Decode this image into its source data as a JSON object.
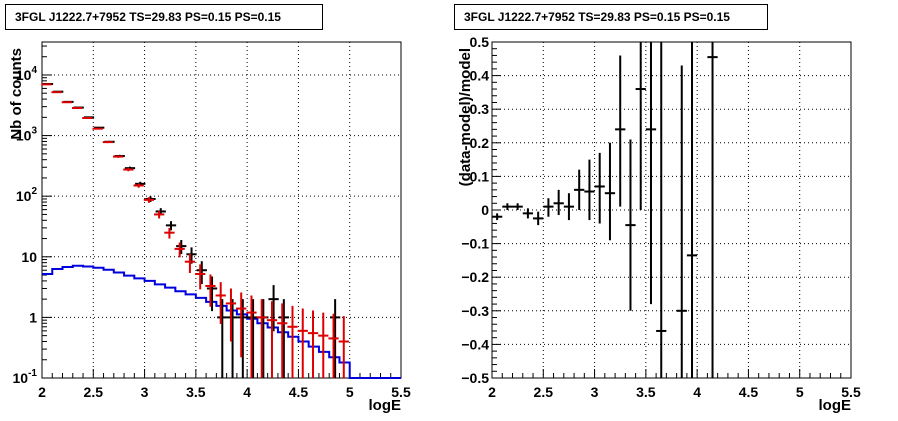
{
  "chart_data": [
    {
      "type": "histogram",
      "title": "3FGL J1222.7+7952 TS=29.83 PS=0.15 PS=0.15",
      "xlabel": "logE",
      "ylabel": "Nb of counts",
      "xlim": [
        2,
        5.5
      ],
      "ylim": [
        0.1,
        35000
      ],
      "yscale": "log",
      "grid": true,
      "x_ticks": [
        "2",
        "2.5",
        "3",
        "3.5",
        "4",
        "4.5",
        "5",
        "5.5"
      ],
      "y_ticks": [
        {
          "value": 0.1,
          "label": "10",
          "exp": "-1"
        },
        {
          "value": 1,
          "label": "1",
          "exp": ""
        },
        {
          "value": 10,
          "label": "10",
          "exp": ""
        },
        {
          "value": 100,
          "label": "10",
          "exp": "2"
        },
        {
          "value": 1000,
          "label": "10",
          "exp": "3"
        },
        {
          "value": 10000,
          "label": "10",
          "exp": "4"
        }
      ],
      "bin_width": 0.1,
      "series": [
        {
          "role": "data",
          "color": "#000000",
          "points": [
            {
              "x": 2.05,
              "y": 7100,
              "lo": 7016,
              "hi": 7184
            },
            {
              "x": 2.15,
              "y": 5300,
              "lo": 5227,
              "hi": 5373
            },
            {
              "x": 2.25,
              "y": 3600,
              "lo": 3540,
              "hi": 3660
            },
            {
              "x": 2.35,
              "y": 2900,
              "lo": 2846,
              "hi": 2954
            },
            {
              "x": 2.45,
              "y": 2000,
              "lo": 1955,
              "hi": 2045
            },
            {
              "x": 2.55,
              "y": 1350,
              "lo": 1313,
              "hi": 1387
            },
            {
              "x": 2.65,
              "y": 790,
              "lo": 762,
              "hi": 818
            },
            {
              "x": 2.75,
              "y": 460,
              "lo": 439,
              "hi": 481
            },
            {
              "x": 2.85,
              "y": 290,
              "lo": 273,
              "hi": 307
            },
            {
              "x": 2.95,
              "y": 160,
              "lo": 147,
              "hi": 173
            },
            {
              "x": 3.05,
              "y": 90,
              "lo": 80.5,
              "hi": 99.5
            },
            {
              "x": 3.15,
              "y": 56,
              "lo": 48.5,
              "hi": 63.5
            },
            {
              "x": 3.25,
              "y": 33,
              "lo": 27.3,
              "hi": 38.7
            },
            {
              "x": 3.35,
              "y": 15,
              "lo": 11.1,
              "hi": 18.9
            },
            {
              "x": 3.45,
              "y": 11,
              "lo": 7.7,
              "hi": 14.3
            },
            {
              "x": 3.55,
              "y": 6,
              "lo": 3.55,
              "hi": 8.45
            },
            {
              "x": 3.65,
              "y": 3,
              "lo": 1.27,
              "hi": 4.73
            },
            {
              "x": 3.75,
              "y": 1,
              "lo": 0.1,
              "hi": 2.0
            },
            {
              "x": 3.85,
              "y": 1,
              "lo": 0.1,
              "hi": 2.0
            },
            {
              "x": 3.95,
              "y": 1,
              "lo": 0.1,
              "hi": 2.0
            },
            {
              "x": 4.05,
              "y": 1,
              "lo": 0.1,
              "hi": 2.0
            },
            {
              "x": 4.15,
              "y": 1,
              "lo": 0.1,
              "hi": 2.0
            },
            {
              "x": 4.25,
              "y": 2,
              "lo": 0.59,
              "hi": 3.41
            },
            {
              "x": 4.35,
              "y": 1,
              "lo": 0.1,
              "hi": 2.0
            },
            {
              "x": 4.85,
              "y": 1,
              "lo": 0.1,
              "hi": 2.0
            }
          ]
        },
        {
          "role": "model",
          "color": "#dd0000",
          "points": [
            {
              "x": 2.05,
              "y": 7000,
              "lo": 6916,
              "hi": 7084
            },
            {
              "x": 2.15,
              "y": 5200,
              "lo": 5128,
              "hi": 5272
            },
            {
              "x": 2.25,
              "y": 3550,
              "lo": 3490,
              "hi": 3610
            },
            {
              "x": 2.35,
              "y": 2850,
              "lo": 2797,
              "hi": 2903
            },
            {
              "x": 2.45,
              "y": 1950,
              "lo": 1906,
              "hi": 1994
            },
            {
              "x": 2.55,
              "y": 1300,
              "lo": 1264,
              "hi": 1336
            },
            {
              "x": 2.65,
              "y": 780,
              "lo": 752,
              "hi": 808
            },
            {
              "x": 2.75,
              "y": 450,
              "lo": 429,
              "hi": 471
            },
            {
              "x": 2.85,
              "y": 275,
              "lo": 258,
              "hi": 292
            },
            {
              "x": 2.95,
              "y": 150,
              "lo": 138,
              "hi": 162
            },
            {
              "x": 3.05,
              "y": 87,
              "lo": 77.7,
              "hi": 96.3
            },
            {
              "x": 3.15,
              "y": 50,
              "lo": 42.9,
              "hi": 57.1
            },
            {
              "x": 3.25,
              "y": 25,
              "lo": 20,
              "hi": 30
            },
            {
              "x": 3.35,
              "y": 13.5,
              "lo": 9.8,
              "hi": 17.2
            },
            {
              "x": 3.45,
              "y": 8.3,
              "lo": 5.4,
              "hi": 11.2
            },
            {
              "x": 3.55,
              "y": 5.2,
              "lo": 2.9,
              "hi": 7.5
            },
            {
              "x": 3.65,
              "y": 3.3,
              "lo": 1.5,
              "hi": 5.1
            },
            {
              "x": 3.75,
              "y": 2.3,
              "lo": 0.78,
              "hi": 3.82
            },
            {
              "x": 3.85,
              "y": 1.7,
              "lo": 0.4,
              "hi": 3.0
            },
            {
              "x": 3.95,
              "y": 1.4,
              "lo": 0.22,
              "hi": 2.58
            },
            {
              "x": 4.05,
              "y": 1.2,
              "lo": 0.1,
              "hi": 2.3
            },
            {
              "x": 4.15,
              "y": 1.0,
              "lo": 0.1,
              "hi": 2.0
            },
            {
              "x": 4.25,
              "y": 0.9,
              "lo": 0.1,
              "hi": 1.85
            },
            {
              "x": 4.35,
              "y": 0.8,
              "lo": 0.1,
              "hi": 1.7
            },
            {
              "x": 4.45,
              "y": 0.7,
              "lo": 0.1,
              "hi": 1.55
            },
            {
              "x": 4.55,
              "y": 0.6,
              "lo": 0.1,
              "hi": 1.4
            },
            {
              "x": 4.65,
              "y": 0.55,
              "lo": 0.1,
              "hi": 1.3
            },
            {
              "x": 4.75,
              "y": 0.5,
              "lo": 0.1,
              "hi": 1.2
            },
            {
              "x": 4.85,
              "y": 0.45,
              "lo": 0.1,
              "hi": 1.15
            },
            {
              "x": 4.95,
              "y": 0.4,
              "lo": 0.1,
              "hi": 1.05
            }
          ]
        },
        {
          "role": "component",
          "color": "#0000dd",
          "style": "step",
          "edges": [
            2.0,
            2.1,
            2.2,
            2.3,
            2.4,
            2.5,
            2.6,
            2.7,
            2.8,
            2.9,
            3.0,
            3.1,
            3.2,
            3.3,
            3.4,
            3.5,
            3.6,
            3.7,
            3.8,
            3.9,
            4.0,
            4.1,
            4.2,
            4.3,
            4.4,
            4.5,
            4.6,
            4.7,
            4.8,
            4.9,
            5.0,
            5.1,
            5.2,
            5.3,
            5.4,
            5.5
          ],
          "values": [
            5.2,
            6.3,
            6.8,
            7.1,
            6.9,
            6.6,
            6.1,
            5.5,
            4.9,
            4.4,
            4.0,
            3.5,
            3.1,
            2.7,
            2.4,
            2.1,
            1.8,
            1.55,
            1.3,
            1.12,
            0.95,
            0.8,
            0.68,
            0.57,
            0.48,
            0.4,
            0.33,
            0.27,
            0.22,
            0.18,
            0.1,
            0.1,
            0.1,
            0.1,
            0.1
          ]
        }
      ]
    },
    {
      "type": "scatter",
      "title": "3FGL J1222.7+7952 TS=29.83 PS=0.15 PS=0.15",
      "xlabel": "logE",
      "ylabel": "(data-model)/model",
      "xlim": [
        2,
        5.5
      ],
      "ylim": [
        -0.5,
        0.5
      ],
      "grid": true,
      "x_ticks": [
        "2",
        "2.5",
        "3",
        "3.5",
        "4",
        "4.5",
        "5",
        "5.5"
      ],
      "y_ticks": [
        "0.5",
        "0.4",
        "0.3",
        "0.2",
        "0.1",
        "0",
        "−0.1",
        "−0.2",
        "−0.3",
        "−0.4",
        "−0.5"
      ],
      "bin_width": 0.1,
      "series": [
        {
          "role": "residual",
          "color": "#000000",
          "points": [
            {
              "x": 2.05,
              "y": -0.02,
              "lo": -0.03,
              "hi": -0.01
            },
            {
              "x": 2.15,
              "y": 0.01,
              "lo": 0.0,
              "hi": 0.02
            },
            {
              "x": 2.25,
              "y": 0.01,
              "lo": 0.0,
              "hi": 0.02
            },
            {
              "x": 2.35,
              "y": -0.01,
              "lo": -0.025,
              "hi": 0.005
            },
            {
              "x": 2.45,
              "y": -0.025,
              "lo": -0.045,
              "hi": -0.005
            },
            {
              "x": 2.55,
              "y": 0.01,
              "lo": -0.02,
              "hi": 0.035
            },
            {
              "x": 2.65,
              "y": 0.02,
              "lo": -0.015,
              "hi": 0.06
            },
            {
              "x": 2.75,
              "y": 0.01,
              "lo": -0.03,
              "hi": 0.05
            },
            {
              "x": 2.85,
              "y": 0.06,
              "lo": 0.0,
              "hi": 0.12
            },
            {
              "x": 2.95,
              "y": 0.055,
              "lo": -0.03,
              "hi": 0.15
            },
            {
              "x": 3.05,
              "y": 0.07,
              "lo": -0.04,
              "hi": 0.17
            },
            {
              "x": 3.15,
              "y": 0.05,
              "lo": -0.09,
              "hi": 0.2
            },
            {
              "x": 3.25,
              "y": 0.24,
              "lo": 0.01,
              "hi": 0.46
            },
            {
              "x": 3.35,
              "y": -0.045,
              "lo": -0.3,
              "hi": 0.21
            },
            {
              "x": 3.45,
              "y": 0.36,
              "lo": 0.0,
              "hi": 0.5
            },
            {
              "x": 3.55,
              "y": 0.24,
              "lo": -0.28,
              "hi": 0.5
            },
            {
              "x": 3.65,
              "y": -0.36,
              "lo": -0.5,
              "hi": 0.5
            },
            {
              "x": 3.85,
              "y": -0.3,
              "lo": -0.5,
              "hi": 0.43
            },
            {
              "x": 3.95,
              "y": -0.135,
              "lo": -0.5,
              "hi": 0.5
            },
            {
              "x": 4.15,
              "y": 0.455,
              "lo": -0.5,
              "hi": 0.5
            }
          ]
        }
      ]
    }
  ]
}
